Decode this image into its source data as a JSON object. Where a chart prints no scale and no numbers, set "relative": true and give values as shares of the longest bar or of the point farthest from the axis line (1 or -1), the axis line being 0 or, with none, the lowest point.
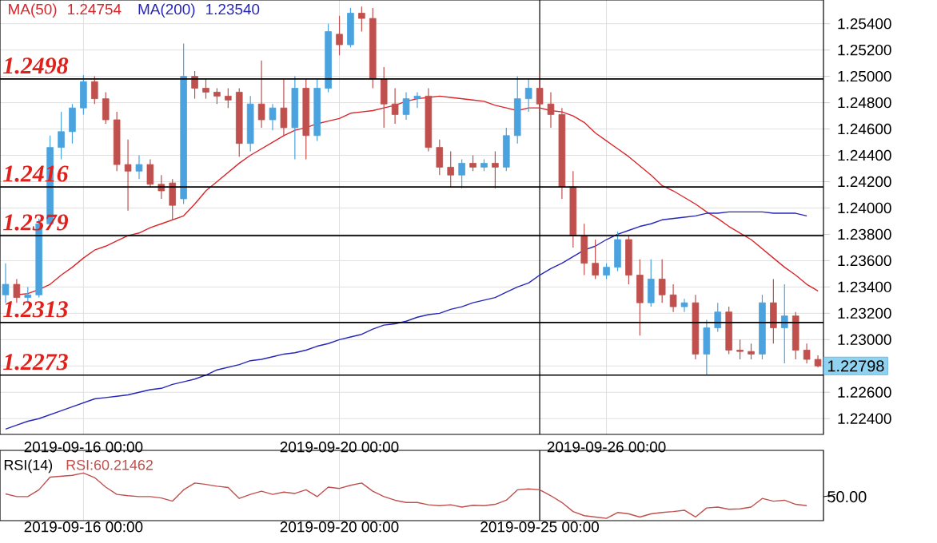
{
  "chart_data": [
    {
      "type": "candlestick",
      "categories": [
        null,
        null,
        null,
        null,
        null,
        null,
        null,
        "2019-09-16 00:00",
        null,
        null,
        null,
        null,
        null,
        null,
        null,
        null,
        null,
        null,
        null,
        null,
        null,
        null,
        null,
        null,
        null,
        null,
        null,
        null,
        null,
        null,
        "2019-09-20 00:00",
        null,
        null,
        null,
        null,
        null,
        null,
        null,
        null,
        null,
        null,
        null,
        null,
        null,
        null,
        null,
        null,
        null,
        null,
        null,
        null,
        null,
        null,
        null,
        "2019-09-26 00:00",
        null,
        null,
        null,
        null,
        null,
        null,
        null,
        null,
        null,
        null,
        null,
        null,
        null,
        null,
        null,
        null,
        null,
        null,
        null
      ],
      "ohlc": [
        [
          1.2334,
          1.2358,
          1.2328,
          1.2342
        ],
        [
          1.2342,
          1.2346,
          1.2328,
          1.2332
        ],
        [
          1.2332,
          1.234,
          1.2328,
          1.2334
        ],
        [
          1.2334,
          1.2392,
          1.2332,
          1.2388
        ],
        [
          1.2388,
          1.2455,
          1.2386,
          1.2446
        ],
        [
          1.2446,
          1.2473,
          1.2437,
          1.2458
        ],
        [
          1.2458,
          1.2479,
          1.2449,
          1.2476
        ],
        [
          1.2476,
          1.2501,
          1.2471,
          1.2496
        ],
        [
          1.2496,
          1.25,
          1.2479,
          1.2483
        ],
        [
          1.2483,
          1.2488,
          1.2464,
          1.2467
        ],
        [
          1.2467,
          1.2473,
          1.2428,
          1.2433
        ],
        [
          1.2433,
          1.2452,
          1.2398,
          1.2428
        ],
        [
          1.2428,
          1.244,
          1.2422,
          1.2433
        ],
        [
          1.2433,
          1.2437,
          1.2416,
          1.2418
        ],
        [
          1.2418,
          1.2425,
          1.2407,
          1.2413
        ],
        [
          1.2419,
          1.2422,
          1.2391,
          1.2402
        ],
        [
          1.2407,
          1.2525,
          1.2403,
          1.25
        ],
        [
          1.25,
          1.2504,
          1.2483,
          1.2491
        ],
        [
          1.2491,
          1.2498,
          1.2483,
          1.2488
        ],
        [
          1.2488,
          1.2491,
          1.2479,
          1.2485
        ],
        [
          1.2485,
          1.2491,
          1.2476,
          1.2482
        ],
        [
          1.2488,
          1.2491,
          1.2439,
          1.2449
        ],
        [
          1.2449,
          1.2485,
          1.2443,
          1.2479
        ],
        [
          1.2479,
          1.2512,
          1.2461,
          1.2467
        ],
        [
          1.2467,
          1.2479,
          1.2459,
          1.2476
        ],
        [
          1.2476,
          1.2498,
          1.2455,
          1.2461
        ],
        [
          1.2461,
          1.25,
          1.2437,
          1.2491
        ],
        [
          1.2491,
          1.2498,
          1.2437,
          1.2455
        ],
        [
          1.2455,
          1.2498,
          1.2451,
          1.2491
        ],
        [
          1.2491,
          1.254,
          1.2488,
          1.2534
        ],
        [
          1.2532,
          1.2546,
          1.2516,
          1.2524
        ],
        [
          1.2524,
          1.2552,
          1.2522,
          1.2548
        ],
        [
          1.2548,
          1.2553,
          1.2534,
          1.2544
        ],
        [
          1.2544,
          1.2552,
          1.2491,
          1.2498
        ],
        [
          1.2498,
          1.2507,
          1.2461,
          1.2479
        ],
        [
          1.2479,
          1.2491,
          1.2464,
          1.2471
        ],
        [
          1.2471,
          1.2488,
          1.2467,
          1.2483
        ],
        [
          1.2483,
          1.2488,
          1.2476,
          1.2485
        ],
        [
          1.2485,
          1.2491,
          1.2443,
          1.2446
        ],
        [
          1.2446,
          1.2452,
          1.2425,
          1.2431
        ],
        [
          1.2431,
          1.2443,
          1.2416,
          1.2425
        ],
        [
          1.2425,
          1.2437,
          1.2415,
          1.2434
        ],
        [
          1.2434,
          1.244,
          1.2428,
          1.2431
        ],
        [
          1.2431,
          1.2437,
          1.2428,
          1.2434
        ],
        [
          1.2434,
          1.2443,
          1.2415,
          1.2431
        ],
        [
          1.2431,
          1.2461,
          1.2428,
          1.2455
        ],
        [
          1.2455,
          1.25,
          1.2449,
          1.2483
        ],
        [
          1.2483,
          1.2498,
          1.2473,
          1.2491
        ],
        [
          1.2491,
          1.2503,
          1.2473,
          1.2479
        ],
        [
          1.2479,
          1.2488,
          1.2461,
          1.2471
        ],
        [
          1.2471,
          1.2476,
          1.2407,
          1.2416
        ],
        [
          1.2416,
          1.2428,
          1.237,
          1.2379
        ],
        [
          1.2379,
          1.2388,
          1.2349,
          1.2358
        ],
        [
          1.2358,
          1.2376,
          1.2346,
          1.2349
        ],
        [
          1.2349,
          1.2358,
          1.2346,
          1.2355
        ],
        [
          1.2355,
          1.2382,
          1.2352,
          1.2376
        ],
        [
          1.2376,
          1.2379,
          1.2342,
          1.2349
        ],
        [
          1.2349,
          1.2361,
          1.2303,
          1.2328
        ],
        [
          1.2328,
          1.2361,
          1.2325,
          1.2346
        ],
        [
          1.2346,
          1.2361,
          1.2328,
          1.2334
        ],
        [
          1.2334,
          1.2342,
          1.2321,
          1.2325
        ],
        [
          1.2325,
          1.2331,
          1.2321,
          1.2328
        ],
        [
          1.2328,
          1.2334,
          1.2285,
          1.2289
        ],
        [
          1.2289,
          1.2315,
          1.2273,
          1.2309
        ],
        [
          1.2309,
          1.2328,
          1.2306,
          1.2321
        ],
        [
          1.2321,
          1.2325,
          1.2289,
          1.2292
        ],
        [
          1.2292,
          1.23,
          1.2285,
          1.2291
        ],
        [
          1.2291,
          1.2297,
          1.2285,
          1.2289
        ],
        [
          1.2289,
          1.2334,
          1.2285,
          1.2328
        ],
        [
          1.2328,
          1.2346,
          1.2297,
          1.2309
        ],
        [
          1.2309,
          1.2342,
          1.2282,
          1.2318
        ],
        [
          1.2318,
          1.2321,
          1.2285,
          1.2292
        ],
        [
          1.2292,
          1.2297,
          1.2282,
          1.2285
        ],
        [
          1.2285,
          1.2288,
          1.2279,
          1.228
        ]
      ],
      "colors": [
        "#4aa3df",
        "#c0504d",
        "#4aa3df",
        "#4aa3df",
        "#4aa3df",
        "#4aa3df",
        "#4aa3df",
        "#4aa3df",
        "#c0504d",
        "#c0504d",
        "#c0504d",
        "#c0504d",
        "#4aa3df",
        "#c0504d",
        "#c0504d",
        "#c0504d",
        "#4aa3df",
        "#c0504d",
        "#c0504d",
        "#c0504d",
        "#c0504d",
        "#c0504d",
        "#4aa3df",
        "#c0504d",
        "#4aa3df",
        "#c0504d",
        "#4aa3df",
        "#c0504d",
        "#4aa3df",
        "#4aa3df",
        "#c0504d",
        "#4aa3df",
        "#c0504d",
        "#c0504d",
        "#c0504d",
        "#c0504d",
        "#4aa3df",
        "#4aa3df",
        "#c0504d",
        "#c0504d",
        "#c0504d",
        "#4aa3df",
        "#c0504d",
        "#4aa3df",
        "#c0504d",
        "#4aa3df",
        "#4aa3df",
        "#4aa3df",
        "#c0504d",
        "#c0504d",
        "#c0504d",
        "#c0504d",
        "#c0504d",
        "#c0504d",
        "#4aa3df",
        "#4aa3df",
        "#c0504d",
        "#c0504d",
        "#4aa3df",
        "#c0504d",
        "#c0504d",
        "#4aa3df",
        "#c0504d",
        "#4aa3df",
        "#4aa3df",
        "#c0504d",
        "#c0504d",
        "#c0504d",
        "#4aa3df",
        "#c0504d",
        "#4aa3df",
        "#c0504d",
        "#c0504d",
        "#c0504d"
      ],
      "series": [
        {
          "name": "MA(50)",
          "type": "line",
          "color": "#d9262b",
          "values": [
            null,
            1.2334,
            1.2335,
            1.2338,
            1.2342,
            1.2349,
            1.2355,
            1.2362,
            1.2368,
            1.2371,
            1.2375,
            1.2379,
            1.2381,
            1.2385,
            1.2388,
            1.2391,
            1.2394,
            1.2403,
            1.2413,
            1.242,
            1.2427,
            1.2434,
            1.244,
            1.2445,
            1.245,
            1.2455,
            1.2459,
            1.2461,
            1.2464,
            1.2466,
            1.2468,
            1.2472,
            1.2473,
            1.2474,
            1.2476,
            1.2478,
            1.2481,
            1.2483,
            1.2484,
            1.2485,
            1.2484,
            1.2483,
            1.2482,
            1.2481,
            1.2478,
            1.2476,
            1.2474,
            1.2476,
            1.2476,
            1.2474,
            1.2473,
            1.247,
            1.2465,
            1.2457,
            1.2451,
            1.2445,
            1.2439,
            1.2432,
            1.2425,
            1.2417,
            1.2413,
            1.2408,
            1.2403,
            1.2397,
            1.2392,
            1.2386,
            1.2381,
            1.2376,
            1.2369,
            1.2362,
            1.2355,
            1.2349,
            1.2342,
            1.2337
          ]
        },
        {
          "name": "MA(200)",
          "type": "line",
          "color": "#2626b8",
          "values": [
            1.2232,
            1.2235,
            1.2238,
            1.224,
            1.2243,
            1.2246,
            1.2249,
            1.2252,
            1.2255,
            1.2256,
            1.2257,
            1.2258,
            1.226,
            1.2262,
            1.2263,
            1.2266,
            1.2268,
            1.227,
            1.2273,
            1.2277,
            1.2279,
            1.2281,
            1.2284,
            1.2285,
            1.2287,
            1.2289,
            1.229,
            1.2292,
            1.2295,
            1.2297,
            1.23,
            1.2302,
            1.2304,
            1.2308,
            1.2311,
            1.2312,
            1.2314,
            1.2317,
            1.2319,
            1.232,
            1.2323,
            1.2325,
            1.2328,
            1.233,
            1.2332,
            1.2336,
            1.234,
            1.2343,
            1.2349,
            1.2354,
            1.2358,
            1.2363,
            1.2368,
            1.2371,
            1.2376,
            1.238,
            1.2383,
            1.2386,
            1.2388,
            1.2391,
            1.2392,
            1.2393,
            1.2394,
            1.2396,
            1.2396,
            1.2397,
            1.2397,
            1.2397,
            1.2397,
            1.2396,
            1.2396,
            1.2396,
            1.2394,
            null
          ]
        }
      ],
      "ylim": [
        1.2228,
        1.2558
      ],
      "yticks": [
        {
          "value": 1.224,
          "label": "1.22400"
        },
        {
          "value": 1.226,
          "label": "1.22600"
        },
        {
          "value": 1.228,
          "label": null
        },
        {
          "value": 1.23,
          "label": "1.23000"
        },
        {
          "value": 1.232,
          "label": "1.23200"
        },
        {
          "value": 1.234,
          "label": "1.23400"
        },
        {
          "value": 1.236,
          "label": "1.23600"
        },
        {
          "value": 1.238,
          "label": "1.23800"
        },
        {
          "value": 1.24,
          "label": "1.24000"
        },
        {
          "value": 1.242,
          "label": "1.24200"
        },
        {
          "value": 1.244,
          "label": "1.24400"
        },
        {
          "value": 1.246,
          "label": "1.24600"
        },
        {
          "value": 1.248,
          "label": "1.24800"
        },
        {
          "value": 1.25,
          "label": "1.25000"
        },
        {
          "value": 1.252,
          "label": "1.25200"
        },
        {
          "value": 1.254,
          "label": "1.25400"
        }
      ],
      "ref_lines": [
        {
          "axis": "y",
          "value": 1.2498,
          "label": "1.2498",
          "color": "#000000"
        },
        {
          "axis": "y",
          "value": 1.2416,
          "label": "1.2416",
          "color": "#000000"
        },
        {
          "axis": "y",
          "value": 1.2379,
          "label": "1.2379",
          "color": "#000000"
        },
        {
          "axis": "y",
          "value": 1.2313,
          "label": "1.2313",
          "color": "#000000"
        },
        {
          "axis": "y",
          "value": 1.2273,
          "label": "1.2273",
          "color": "#000000"
        }
      ],
      "annotations": [
        "1.24754",
        "1.23540",
        "1.22798"
      ],
      "legend": "top left",
      "grid": true
    },
    {
      "type": "line",
      "title": "RSI(14)",
      "relative": true,
      "categories": [
        null,
        null,
        null,
        null,
        null,
        null,
        null,
        "2019-09-16 00:00",
        null,
        null,
        null,
        null,
        null,
        null,
        null,
        null,
        null,
        null,
        null,
        null,
        null,
        null,
        null,
        null,
        null,
        null,
        null,
        null,
        null,
        null,
        "2019-09-20 00:00",
        null,
        null,
        null,
        null,
        null,
        null,
        null,
        null,
        null,
        null,
        null,
        null,
        null,
        null,
        null,
        null,
        null,
        "2019-09-25 00:00",
        null,
        null,
        null,
        null,
        null,
        null,
        null,
        null,
        null,
        null,
        null,
        null,
        null,
        null,
        null,
        null,
        null,
        null,
        null,
        null,
        null,
        null,
        null,
        null,
        null
      ],
      "series": [
        {
          "color": "#c0504d",
          "values": [
            0.54,
            0.48,
            0.48,
            0.63,
            0.91,
            0.93,
            0.95,
            1.0,
            0.9,
            0.69,
            0.53,
            0.5,
            0.48,
            0.48,
            0.45,
            0.38,
            0.63,
            0.78,
            0.75,
            0.71,
            0.68,
            0.44,
            0.53,
            0.6,
            0.53,
            0.58,
            0.55,
            0.63,
            0.48,
            0.69,
            0.66,
            0.73,
            0.78,
            0.6,
            0.48,
            0.4,
            0.35,
            0.35,
            0.3,
            0.28,
            0.3,
            0.25,
            0.29,
            0.28,
            0.31,
            0.4,
            0.63,
            0.65,
            0.63,
            0.5,
            0.35,
            0.15,
            0.06,
            0.03,
            0.0,
            0.13,
            0.1,
            0.03,
            0.1,
            0.13,
            0.15,
            0.18,
            0.03,
            0.23,
            0.25,
            0.2,
            0.21,
            0.25,
            0.44,
            0.38,
            0.4,
            0.31,
            0.28,
            null
          ]
        }
      ],
      "ref_lines": [
        {
          "axis": "x",
          "value": "2019-09-25 00:00",
          "color": "#000000"
        }
      ],
      "annotations": [
        "RSI:60.21462",
        "50.00"
      ],
      "grid": "x"
    }
  ]
}
